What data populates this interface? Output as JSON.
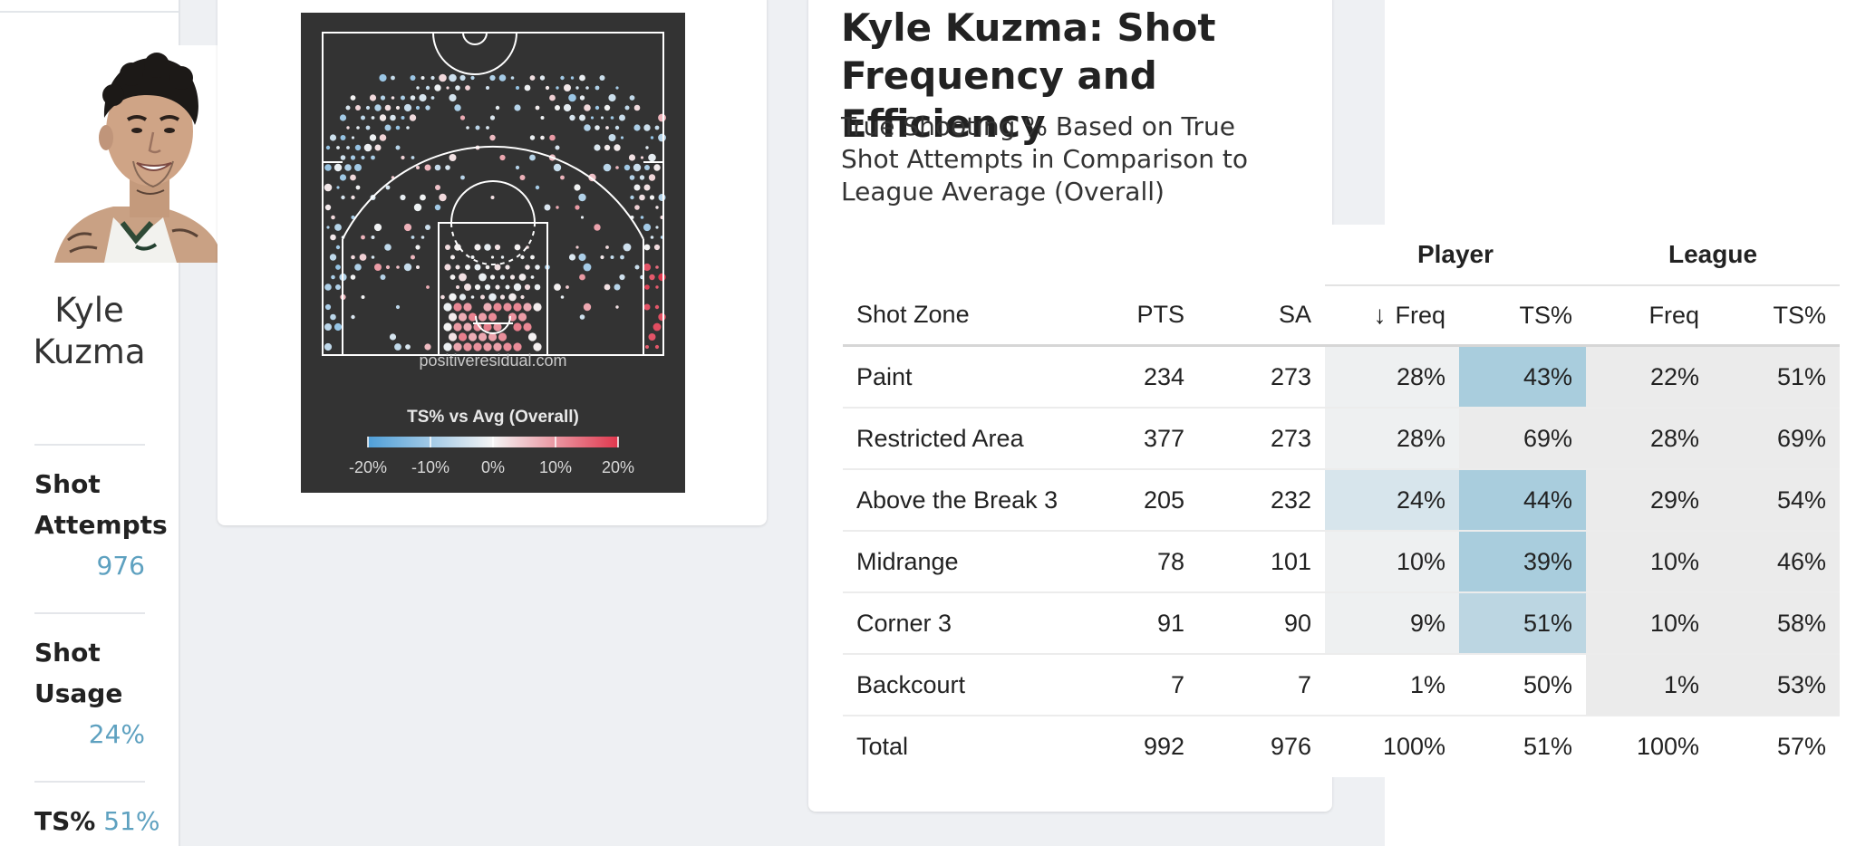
{
  "player": {
    "name": "Kyle Kuzma",
    "stats": [
      {
        "label": "Shot Attempts",
        "value": "976"
      },
      {
        "label": "Shot Usage",
        "value": "24%"
      },
      {
        "label": "TS%",
        "value": "51%"
      }
    ]
  },
  "shot_chart": {
    "watermark": "positiveresidual.com",
    "legend_title": "TS% vs Avg (Overall)",
    "legend_ticks": [
      "-20%",
      "-10%",
      "0%",
      "10%",
      "20%"
    ],
    "colors": {
      "below_avg": "#4f9fd8",
      "average": "#f4f4f4",
      "above_avg": "#e0384e",
      "court_bg": "#333333",
      "court_lines": "#ffffff"
    }
  },
  "card": {
    "title": "Kyle Kuzma: Shot Frequency and Efficiency",
    "subtitle": "True Shooting % Based on True Shot Attempts in Comparison to League Average (Overall)"
  },
  "table": {
    "group_headers": {
      "player": "Player",
      "league": "League"
    },
    "columns": {
      "zone": "Shot Zone",
      "pts": "PTS",
      "sa": "SA",
      "sort_arrow": "↓",
      "player_freq": "Freq",
      "player_ts": "TS%",
      "league_freq": "Freq",
      "league_ts": "TS%"
    },
    "rows": [
      {
        "zone": "Paint",
        "pts": "234",
        "sa": "273",
        "player_freq": "28%",
        "player_ts": "43%",
        "league_freq": "22%",
        "league_ts": "51%"
      },
      {
        "zone": "Restricted Area",
        "pts": "377",
        "sa": "273",
        "player_freq": "28%",
        "player_ts": "69%",
        "league_freq": "28%",
        "league_ts": "69%"
      },
      {
        "zone": "Above the Break 3",
        "pts": "205",
        "sa": "232",
        "player_freq": "24%",
        "player_ts": "44%",
        "league_freq": "29%",
        "league_ts": "54%"
      },
      {
        "zone": "Midrange",
        "pts": "78",
        "sa": "101",
        "player_freq": "10%",
        "player_ts": "39%",
        "league_freq": "10%",
        "league_ts": "46%"
      },
      {
        "zone": "Corner 3",
        "pts": "91",
        "sa": "90",
        "player_freq": "9%",
        "player_ts": "51%",
        "league_freq": "10%",
        "league_ts": "58%"
      },
      {
        "zone": "Backcourt",
        "pts": "7",
        "sa": "7",
        "player_freq": "1%",
        "player_ts": "50%",
        "league_freq": "1%",
        "league_ts": "53%"
      }
    ],
    "total": {
      "zone": "Total",
      "pts": "992",
      "sa": "976",
      "player_freq": "100%",
      "player_ts": "51%",
      "league_freq": "100%",
      "league_ts": "57%"
    }
  }
}
